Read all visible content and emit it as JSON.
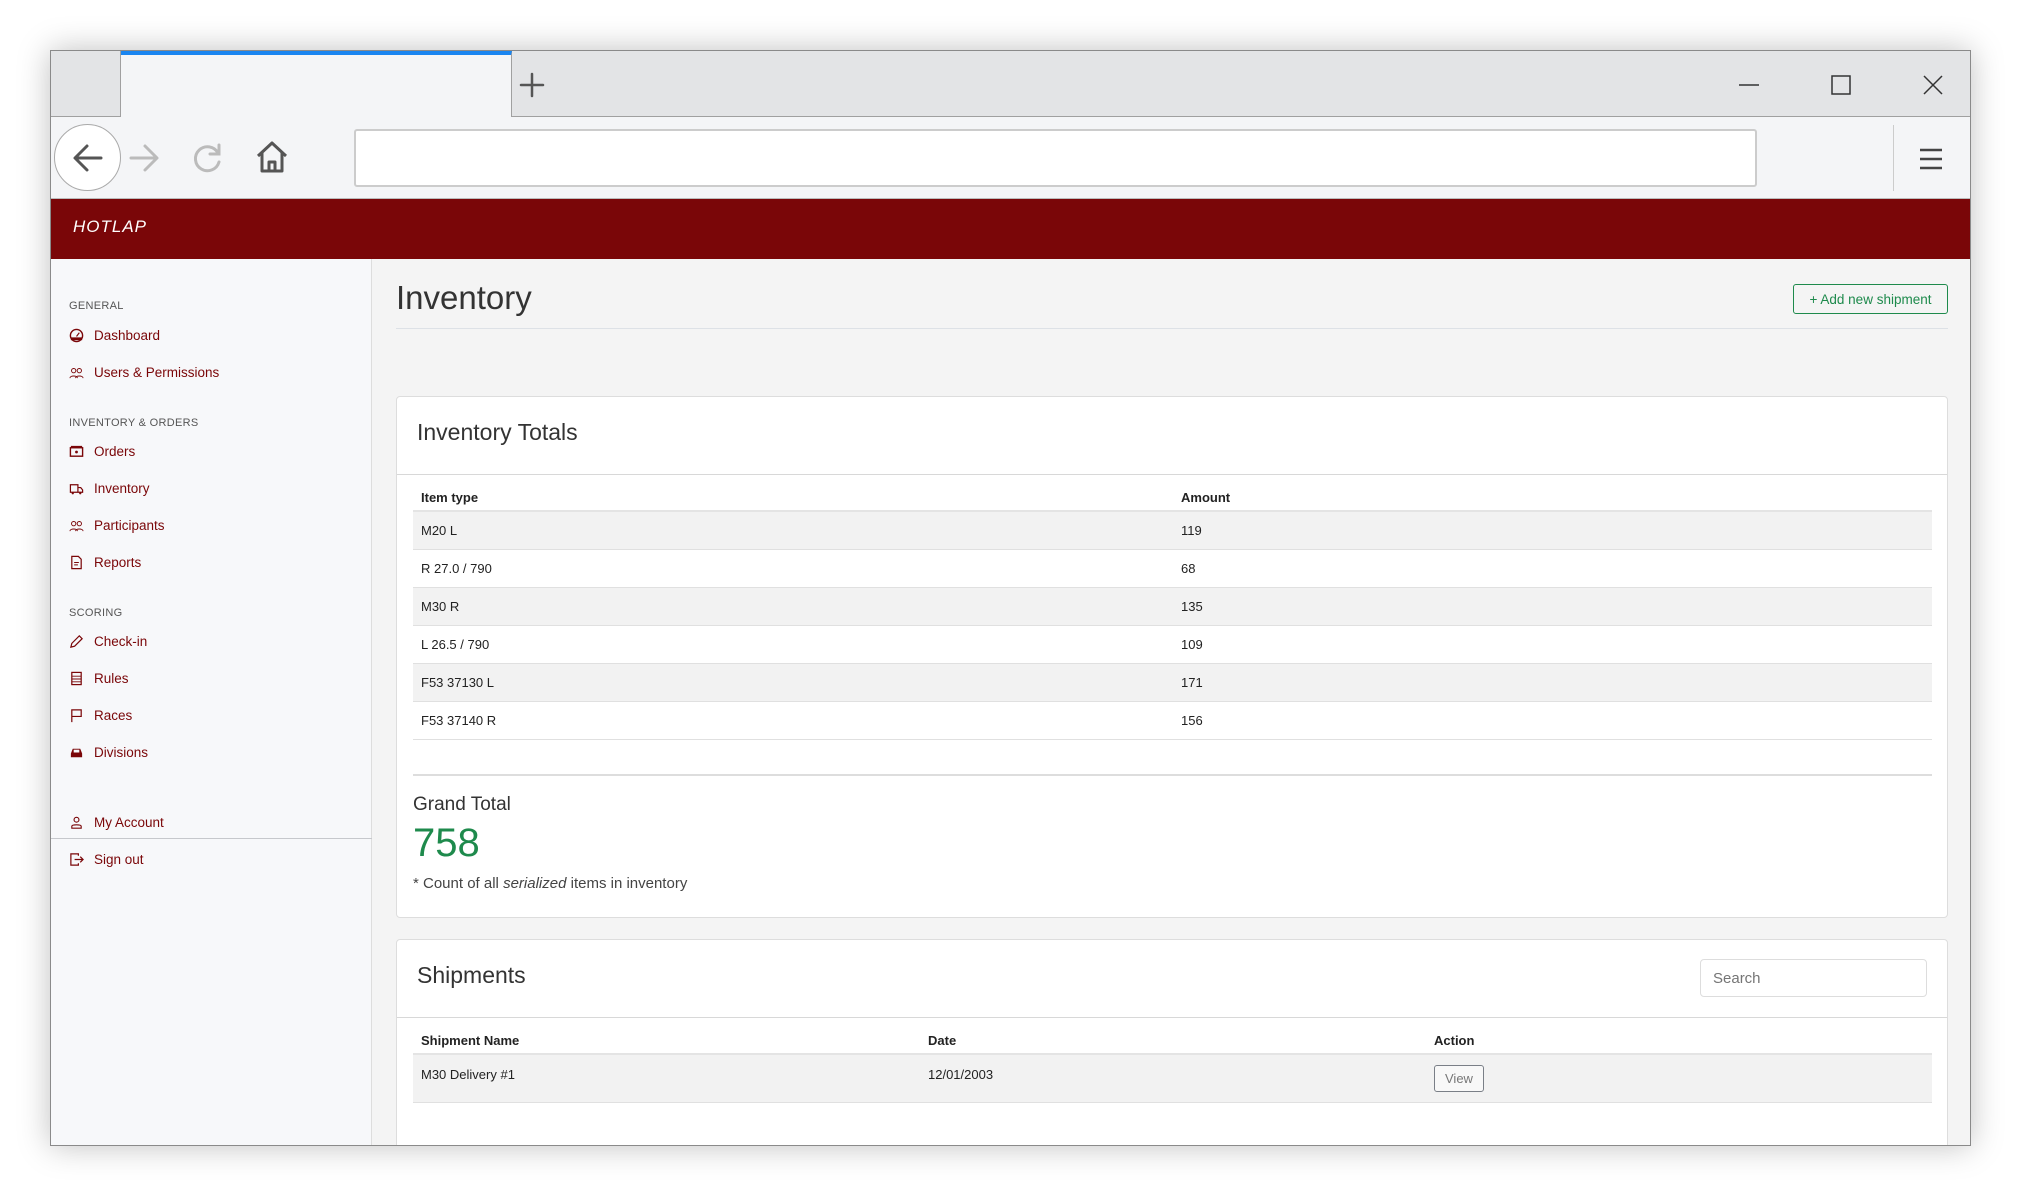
{
  "browser": {
    "new_tab_icon": "plus-icon",
    "address": ""
  },
  "brand": {
    "logo": "HOTLAP"
  },
  "sidebar": {
    "sections": [
      {
        "label": "GENERAL",
        "items": [
          {
            "label": "Dashboard",
            "icon": "dashboard-icon"
          },
          {
            "label": "Users & Permissions",
            "icon": "users-icon"
          }
        ]
      },
      {
        "label": "INVENTORY & ORDERS",
        "items": [
          {
            "label": "Orders",
            "icon": "orders-icon"
          },
          {
            "label": "Inventory",
            "icon": "truck-icon"
          },
          {
            "label": "Participants",
            "icon": "users-icon"
          },
          {
            "label": "Reports",
            "icon": "report-icon"
          }
        ]
      },
      {
        "label": "SCORING",
        "items": [
          {
            "label": "Check-in",
            "icon": "pencil-icon"
          },
          {
            "label": "Rules",
            "icon": "rules-icon"
          },
          {
            "label": "Races",
            "icon": "flag-icon"
          },
          {
            "label": "Divisions",
            "icon": "car-icon"
          }
        ]
      }
    ],
    "account": [
      {
        "label": "My Account",
        "icon": "user-icon"
      },
      {
        "label": "Sign out",
        "icon": "sign-out-icon"
      }
    ]
  },
  "page": {
    "title": "Inventory",
    "add_button": "+  Add new shipment"
  },
  "totals": {
    "title": "Inventory Totals",
    "columns": [
      "Item type",
      "Amount"
    ],
    "rows": [
      [
        "M20 L",
        "119"
      ],
      [
        "R 27.0 / 790",
        "68"
      ],
      [
        "M30 R",
        "135"
      ],
      [
        "L 26.5 / 790",
        "109"
      ],
      [
        "F53 37130 L",
        "171"
      ],
      [
        "F53 37140 R",
        "156"
      ]
    ],
    "grand_total_label": "Grand Total",
    "grand_total": "758",
    "note_pre": "* Count of all ",
    "note_em": "serialized",
    "note_post": " items in inventory"
  },
  "shipments": {
    "title": "Shipments",
    "search_placeholder": "Search",
    "columns": [
      "Shipment Name",
      "Date",
      "Action"
    ],
    "rows": [
      {
        "name": "M30 Delivery #1",
        "date": "12/01/2003",
        "action": "View"
      }
    ]
  },
  "colors": {
    "brand": "#7a0608",
    "accent": "#1e8a4c"
  }
}
